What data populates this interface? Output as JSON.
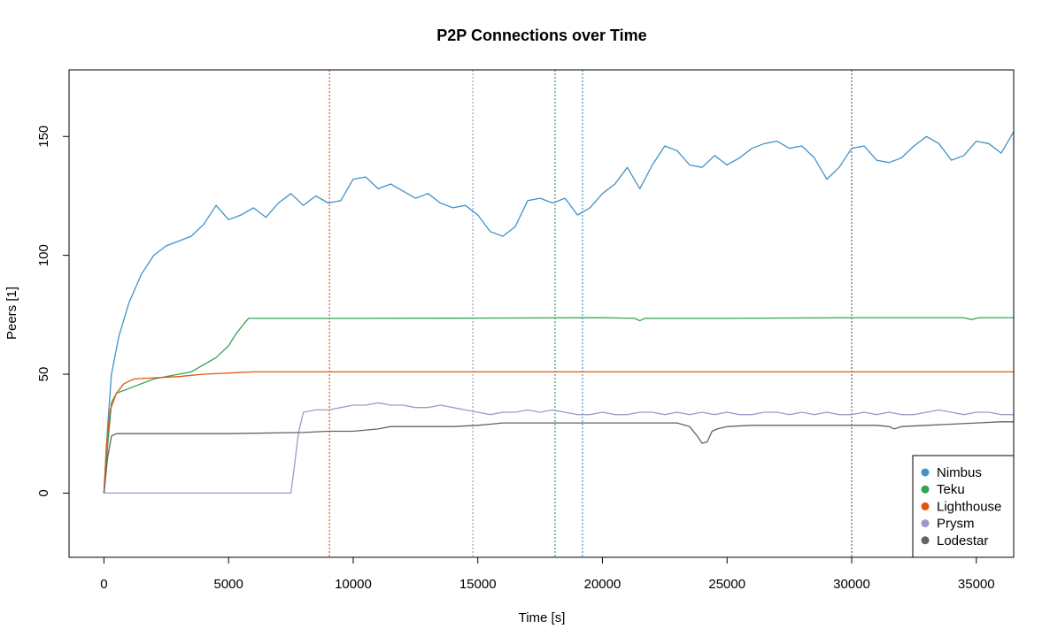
{
  "chart_data": {
    "type": "line",
    "title": "P2P Connections over Time",
    "xlabel": "Time [s]",
    "ylabel": "Peers [1]",
    "xlim": [
      -1400,
      36500
    ],
    "ylim": [
      -27,
      178
    ],
    "xticks": [
      0,
      5000,
      10000,
      15000,
      20000,
      25000,
      30000,
      35000
    ],
    "yticks": [
      0,
      50,
      100,
      150
    ],
    "grid": false,
    "legend_position": "bottom-right",
    "series": [
      {
        "name": "Nimbus",
        "color": "#4292c6",
        "x": [
          0,
          150,
          300,
          600,
          1000,
          1500,
          2000,
          2500,
          3000,
          3500,
          4000,
          4500,
          5000,
          5500,
          6000,
          6500,
          7000,
          7500,
          8000,
          8500,
          9000,
          9500,
          10000,
          10500,
          11000,
          11500,
          12000,
          12500,
          13000,
          13500,
          14000,
          14500,
          15000,
          15500,
          16000,
          16500,
          17000,
          17500,
          18000,
          18500,
          19000,
          19500,
          20000,
          20500,
          21000,
          21500,
          22000,
          22500,
          23000,
          23500,
          24000,
          24500,
          25000,
          25500,
          26000,
          26500,
          27000,
          27500,
          28000,
          28500,
          29000,
          29500,
          30000,
          30500,
          31000,
          31500,
          32000,
          32500,
          33000,
          33500,
          34000,
          34500,
          35000,
          35500,
          36000,
          36500
        ],
        "y": [
          0,
          28,
          50,
          66,
          80,
          92,
          100,
          104,
          106,
          108,
          113,
          121,
          115,
          117,
          120,
          116,
          122,
          126,
          121,
          125,
          122,
          123,
          132,
          133,
          128,
          130,
          127,
          124,
          126,
          122,
          120,
          121,
          117,
          110,
          108,
          112,
          123,
          124,
          122,
          124,
          117,
          120,
          126,
          130,
          137,
          128,
          138,
          146,
          144,
          138,
          137,
          142,
          138,
          141,
          145,
          147,
          148,
          145,
          146,
          141,
          132,
          137,
          145,
          146,
          140,
          139,
          141,
          146,
          150,
          147,
          140,
          142,
          148,
          147,
          143,
          152
        ]
      },
      {
        "name": "Teku",
        "color": "#31a354",
        "x": [
          0,
          150,
          300,
          500,
          1000,
          1500,
          2000,
          2500,
          3000,
          3500,
          4000,
          4500,
          5000,
          5300,
          5600,
          5800,
          10000,
          15000,
          20000,
          21300,
          21500,
          21700,
          25000,
          30000,
          34500,
          34800,
          35100,
          36500
        ],
        "y": [
          0,
          20,
          38,
          42,
          44,
          46,
          48,
          49,
          50,
          51,
          54,
          57,
          62,
          67,
          71,
          73.5,
          73.5,
          73.6,
          73.8,
          73.5,
          72.5,
          73.5,
          73.5,
          73.8,
          73.8,
          73,
          73.8,
          73.8
        ]
      },
      {
        "name": "Lighthouse",
        "color": "#e6550d",
        "x": [
          0,
          100,
          250,
          500,
          800,
          1200,
          2000,
          3000,
          4000,
          5000,
          6000,
          10000,
          15000,
          20000,
          25000,
          30000,
          36500
        ],
        "y": [
          0,
          20,
          35,
          42,
          46,
          48,
          48.5,
          49,
          50,
          50.5,
          51,
          51,
          51,
          51,
          51,
          51,
          51
        ]
      },
      {
        "name": "Prysm",
        "color": "#9e9ac8",
        "x": [
          0,
          7500,
          7600,
          7800,
          8000,
          8500,
          9000,
          9500,
          10000,
          10500,
          11000,
          11500,
          12000,
          12500,
          13000,
          13500,
          14000,
          14500,
          15000,
          15500,
          16000,
          16500,
          17000,
          17500,
          18000,
          18500,
          19000,
          19500,
          20000,
          20500,
          21000,
          21500,
          22000,
          22500,
          23000,
          23500,
          24000,
          24500,
          25000,
          25500,
          26000,
          26500,
          27000,
          27500,
          28000,
          28500,
          29000,
          29500,
          30000,
          30500,
          31000,
          31500,
          32000,
          32500,
          33000,
          33500,
          34000,
          34500,
          35000,
          35500,
          36000,
          36500
        ],
        "y": [
          0,
          0,
          8,
          25,
          34,
          35,
          35,
          36,
          37,
          37,
          38,
          37,
          37,
          36,
          36,
          37,
          36,
          35,
          34,
          33,
          34,
          34,
          35,
          34,
          35,
          34,
          33,
          33,
          34,
          33,
          33,
          34,
          34,
          33,
          34,
          33,
          34,
          33,
          34,
          33,
          33,
          34,
          34,
          33,
          34,
          33,
          34,
          33,
          33,
          34,
          33,
          34,
          33,
          33,
          34,
          35,
          34,
          33,
          34,
          34,
          33,
          33
        ]
      },
      {
        "name": "Lodestar",
        "color": "#636363",
        "x": [
          0,
          150,
          300,
          500,
          1000,
          5000,
          8000,
          9000,
          10000,
          11000,
          11500,
          12000,
          13000,
          14000,
          15000,
          15500,
          16000,
          17000,
          18000,
          19000,
          20000,
          21000,
          22000,
          23000,
          23500,
          23800,
          24000,
          24200,
          24400,
          24600,
          25000,
          26000,
          27000,
          28000,
          29000,
          30000,
          31000,
          31500,
          31700,
          32000,
          33000,
          34000,
          35000,
          36000,
          36500
        ],
        "y": [
          0,
          15,
          24,
          25,
          25,
          25,
          25.5,
          26,
          26,
          27,
          28,
          28,
          28,
          28,
          28.5,
          29,
          29.5,
          29.5,
          29.5,
          29.5,
          29.5,
          29.5,
          29.5,
          29.5,
          28,
          24,
          21,
          21.5,
          26,
          27,
          28,
          28.5,
          28.5,
          28.5,
          28.5,
          28.5,
          28.5,
          28,
          27,
          28,
          28.5,
          29,
          29.5,
          30,
          30
        ]
      }
    ],
    "vertical_lines": [
      {
        "x": 9050,
        "color": "#e6550d"
      },
      {
        "x": 14800,
        "color": "#9e9ac8"
      },
      {
        "x": 18100,
        "color": "#31a354"
      },
      {
        "x": 19200,
        "color": "#4292c6"
      },
      {
        "x": 30000,
        "color": "#636363"
      }
    ]
  }
}
